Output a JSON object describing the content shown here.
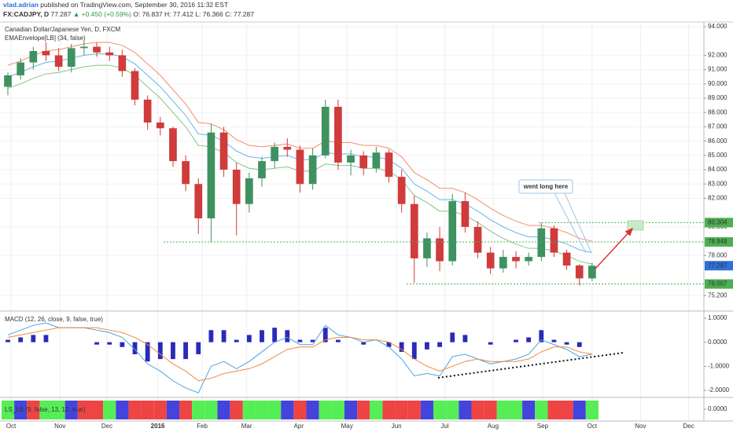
{
  "header": {
    "user": "vlad.adrian",
    "published": "published on TradingView.com, September 30, 2016 11:32 EST",
    "symbol": "FX:CADJPY, D",
    "price": "77.287",
    "change": "▲ +0.450 (+0.59%)",
    "open": "O: 76.837",
    "high": "H: 77.412",
    "low": "L: 76.366",
    "close": "C: 77.287"
  },
  "chart_data": [
    {
      "type": "candlestick",
      "title": "Canadian Dollar/Japanese Yen, D, FXCM",
      "x": [
        0,
        1,
        2,
        3,
        4,
        5,
        6,
        7,
        8,
        9,
        10,
        11,
        12,
        13,
        14,
        15,
        16,
        17,
        18,
        19,
        20,
        21,
        22,
        23,
        24,
        25,
        26,
        27,
        28,
        29,
        30,
        31,
        32,
        33,
        34,
        35,
        36,
        37,
        38,
        39,
        40,
        41,
        42,
        43,
        44,
        45,
        46
      ],
      "open": [
        89.8,
        90.6,
        91.5,
        92.3,
        92.0,
        91.2,
        92.5,
        92.6,
        92.2,
        92.0,
        90.9,
        88.9,
        87.3,
        86.9,
        84.6,
        83.0,
        80.6,
        86.6,
        84.0,
        81.6,
        83.4,
        84.6,
        85.6,
        85.4,
        83.0,
        85.0,
        88.4,
        84.5,
        85.0,
        84.1,
        85.2,
        83.5,
        81.6,
        77.8,
        79.2,
        77.6,
        81.8,
        80.0,
        78.2,
        77.1,
        77.9,
        77.6,
        77.9,
        79.9,
        78.2,
        77.3,
        76.4
      ],
      "high": [
        90.8,
        91.8,
        92.6,
        92.9,
        92.5,
        92.8,
        93.0,
        92.9,
        92.6,
        92.4,
        91.1,
        89.2,
        87.7,
        87.0,
        85.0,
        83.4,
        87.2,
        87.0,
        84.5,
        83.8,
        84.9,
        85.9,
        86.2,
        85.7,
        85.5,
        88.9,
        88.9,
        85.4,
        85.3,
        85.6,
        85.4,
        84.0,
        82.2,
        79.6,
        80.0,
        82.3,
        82.4,
        80.4,
        78.6,
        78.4,
        78.3,
        78.2,
        80.3,
        80.1,
        78.4,
        77.4,
        77.5
      ],
      "low": [
        89.2,
        90.3,
        91.0,
        91.6,
        90.9,
        90.8,
        92.0,
        91.9,
        91.6,
        90.5,
        88.5,
        86.8,
        86.4,
        84.2,
        82.5,
        79.5,
        78.9,
        83.5,
        79.4,
        81.0,
        82.8,
        84.1,
        84.9,
        82.4,
        82.6,
        84.8,
        84.0,
        83.6,
        83.6,
        83.8,
        83.1,
        81.0,
        76.1,
        77.2,
        76.9,
        77.3,
        79.6,
        77.8,
        76.7,
        76.8,
        77.1,
        77.3,
        77.6,
        77.9,
        77.0,
        75.9,
        76.2
      ],
      "close": [
        90.6,
        91.5,
        92.3,
        92.0,
        91.2,
        92.5,
        92.6,
        92.2,
        92.0,
        90.9,
        88.9,
        87.3,
        86.9,
        84.6,
        83.0,
        80.6,
        86.6,
        84.0,
        81.6,
        83.4,
        84.6,
        85.6,
        85.4,
        83.0,
        85.0,
        88.4,
        84.5,
        85.0,
        84.1,
        85.2,
        83.5,
        81.6,
        77.8,
        79.2,
        77.6,
        81.8,
        80.0,
        78.2,
        77.1,
        77.9,
        77.6,
        77.9,
        79.9,
        78.2,
        77.3,
        76.4,
        77.287
      ],
      "up_color": "#3f9160",
      "down_color": "#d03b3b",
      "indicator": {
        "label": "EMAEnvelope[LB] (34, false)",
        "lines": [
          {
            "color": "#f0906e",
            "values": [
              91.3,
              91.6,
              92.0,
              92.3,
              92.4,
              92.6,
              92.8,
              92.9,
              92.9,
              92.7,
              92.2,
              91.4,
              90.6,
              89.6,
              88.6,
              87.3,
              87.2,
              86.8,
              86.1,
              85.7,
              85.6,
              85.7,
              85.8,
              85.5,
              85.5,
              86.0,
              85.9,
              85.9,
              85.7,
              85.7,
              85.5,
              84.9,
              83.8,
              83.3,
              82.7,
              82.7,
              82.4,
              81.9,
              81.3,
              80.8,
              80.4,
              80.1,
              80.1,
              79.9,
              79.6,
              79.2,
              79.0
            ]
          },
          {
            "color": "#62b8e6",
            "values": [
              90.5,
              90.8,
              91.2,
              91.5,
              91.6,
              91.8,
              92.0,
              92.1,
              92.1,
              91.9,
              91.4,
              90.6,
              89.8,
              88.8,
              87.8,
              86.5,
              86.4,
              86.0,
              85.3,
              84.9,
              84.8,
              84.9,
              85.0,
              84.7,
              84.7,
              85.2,
              85.1,
              85.1,
              84.9,
              84.9,
              84.7,
              84.1,
              83.0,
              82.5,
              81.9,
              81.9,
              81.6,
              81.1,
              80.5,
              80.0,
              79.6,
              79.3,
              79.3,
              79.1,
              78.8,
              78.4,
              78.2
            ]
          },
          {
            "color": "#86c486",
            "values": [
              89.7,
              90.0,
              90.4,
              90.7,
              90.8,
              91.0,
              91.2,
              91.3,
              91.3,
              91.1,
              90.6,
              89.8,
              89.0,
              88.0,
              87.0,
              85.7,
              85.6,
              85.2,
              84.5,
              84.1,
              84.0,
              84.1,
              84.2,
              83.9,
              83.9,
              84.4,
              84.3,
              84.3,
              84.1,
              84.1,
              83.9,
              83.3,
              82.2,
              81.7,
              81.1,
              81.1,
              80.8,
              80.3,
              79.7,
              79.2,
              78.8,
              78.5,
              78.5,
              78.3,
              78.0,
              77.6,
              77.4
            ]
          }
        ]
      },
      "xlim": [
        -0.62,
        54.8
      ],
      "xticks": [
        {
          "value": 0.25,
          "label": "Oct"
        },
        {
          "value": 4.1,
          "label": "Nov"
        },
        {
          "value": 7.8,
          "label": "Dec"
        },
        {
          "value": 11.8,
          "label": "2016"
        },
        {
          "value": 15.3,
          "label": "Feb"
        },
        {
          "value": 18.8,
          "label": "Mar"
        },
        {
          "value": 22.9,
          "label": "Apr"
        },
        {
          "value": 26.7,
          "label": "May"
        },
        {
          "value": 30.6,
          "label": "Jun"
        },
        {
          "value": 34.4,
          "label": "Jul"
        },
        {
          "value": 38.2,
          "label": "Aug"
        },
        {
          "value": 42.1,
          "label": "Sep"
        },
        {
          "value": 46.0,
          "label": "Oct"
        },
        {
          "value": 49.8,
          "label": "Nov"
        },
        {
          "value": 53.6,
          "label": "Dec"
        }
      ],
      "ylim": [
        74.17,
        94.33
      ],
      "yticks": [
        {
          "value": 94,
          "label": "94.000"
        },
        {
          "value": 92,
          "label": "92.000"
        },
        {
          "value": 91,
          "label": "91.000"
        },
        {
          "value": 90,
          "label": "90.000"
        },
        {
          "value": 89,
          "label": "89.000"
        },
        {
          "value": 88,
          "label": "88.000"
        },
        {
          "value": 87,
          "label": "87.000"
        },
        {
          "value": 86,
          "label": "86.000"
        },
        {
          "value": 85,
          "label": "85.000"
        },
        {
          "value": 84,
          "label": "84.000"
        },
        {
          "value": 83,
          "label": "83.000"
        },
        {
          "value": 82,
          "label": "82.000"
        },
        {
          "value": 80,
          "label": "80.000"
        },
        {
          "value": 78,
          "label": "78.000"
        },
        {
          "value": 75.2,
          "label": "75.200"
        }
      ],
      "grid": true,
      "levels": [
        80.304,
        78.948,
        76.007
      ],
      "level_color": "#4caf50",
      "last_price": 77.287,
      "last_color": "#2f6fd6",
      "annotation": "went long here"
    },
    {
      "type": "macd",
      "title": "MACD (12, 26, close, 9, false, true)",
      "histogram": {
        "color": "#2a2ab8",
        "values": [
          0.1,
          0.2,
          0.3,
          0.3,
          0.0,
          0.0,
          0.0,
          -0.1,
          -0.1,
          -0.2,
          -0.5,
          -0.8,
          -0.7,
          -0.7,
          -0.7,
          -0.5,
          0.5,
          0.5,
          0.1,
          0.3,
          0.5,
          0.6,
          0.5,
          0.1,
          0.1,
          0.6,
          0.1,
          0.0,
          -0.1,
          0.0,
          -0.2,
          -0.4,
          -0.7,
          -0.3,
          -0.2,
          0.4,
          0.3,
          0.0,
          -0.1,
          0.0,
          0.1,
          0.2,
          0.5,
          0.1,
          -0.1,
          -0.2,
          0.0
        ]
      },
      "macd": {
        "color": "#4aa3df",
        "values": [
          0.3,
          0.5,
          0.7,
          0.8,
          0.6,
          0.6,
          0.6,
          0.5,
          0.4,
          0.2,
          -0.3,
          -0.9,
          -1.2,
          -1.6,
          -1.9,
          -2.1,
          -1.0,
          -0.8,
          -1.1,
          -0.8,
          -0.4,
          0.0,
          0.2,
          -0.1,
          -0.1,
          0.7,
          0.3,
          0.2,
          0.0,
          0.1,
          -0.2,
          -0.7,
          -1.4,
          -1.3,
          -1.4,
          -0.6,
          -0.5,
          -0.7,
          -0.9,
          -0.8,
          -0.7,
          -0.5,
          0.1,
          -0.1,
          -0.3,
          -0.6,
          -0.5
        ]
      },
      "signal": {
        "color": "#f08a3c",
        "values": [
          0.2,
          0.3,
          0.4,
          0.5,
          0.6,
          0.6,
          0.6,
          0.6,
          0.5,
          0.4,
          0.2,
          -0.1,
          -0.5,
          -0.9,
          -1.2,
          -1.6,
          -1.5,
          -1.3,
          -1.2,
          -1.1,
          -0.9,
          -0.6,
          -0.3,
          -0.2,
          -0.2,
          0.1,
          0.2,
          0.2,
          0.1,
          0.1,
          0.0,
          -0.3,
          -0.7,
          -1.0,
          -1.2,
          -1.0,
          -0.8,
          -0.7,
          -0.8,
          -0.8,
          -0.8,
          -0.7,
          -0.4,
          -0.2,
          -0.2,
          -0.4,
          -0.5
        ]
      },
      "ylim": [
        -2.26,
        1.26
      ],
      "yticks": [
        {
          "value": 1,
          "label": "1.0000"
        },
        {
          "value": 0,
          "label": "0.0000"
        },
        {
          "value": -1,
          "label": "-1.0000"
        },
        {
          "value": -2,
          "label": "-2.0000"
        }
      ]
    },
    {
      "type": "strip",
      "title": "LS_LB (9, false, 13, 12, true)",
      "colors": [
        "#55ee55",
        "#4444dd",
        "#ee4444",
        "#55ee55",
        "#55ee55",
        "#4444dd",
        "#ee4444",
        "#ee4444",
        "#55ee55",
        "#4444dd",
        "#ee4444",
        "#ee4444",
        "#ee4444",
        "#4444dd",
        "#ee4444",
        "#55ee55",
        "#55ee55",
        "#4444dd",
        "#ee4444",
        "#55ee55",
        "#55ee55",
        "#55ee55",
        "#4444dd",
        "#ee4444",
        "#4444dd",
        "#55ee55",
        "#55ee55",
        "#4444dd",
        "#ee4444",
        "#55ee55",
        "#ee4444",
        "#ee4444",
        "#ee4444",
        "#4444dd",
        "#55ee55",
        "#55ee55",
        "#4444dd",
        "#ee4444",
        "#ee4444",
        "#55ee55",
        "#55ee55",
        "#4444dd",
        "#55ee55",
        "#ee4444",
        "#ee4444",
        "#4444dd",
        "#55ee55"
      ],
      "ylim": [
        -1,
        1
      ],
      "yticks": [
        {
          "value": 0,
          "label": "0.0000"
        }
      ]
    }
  ]
}
